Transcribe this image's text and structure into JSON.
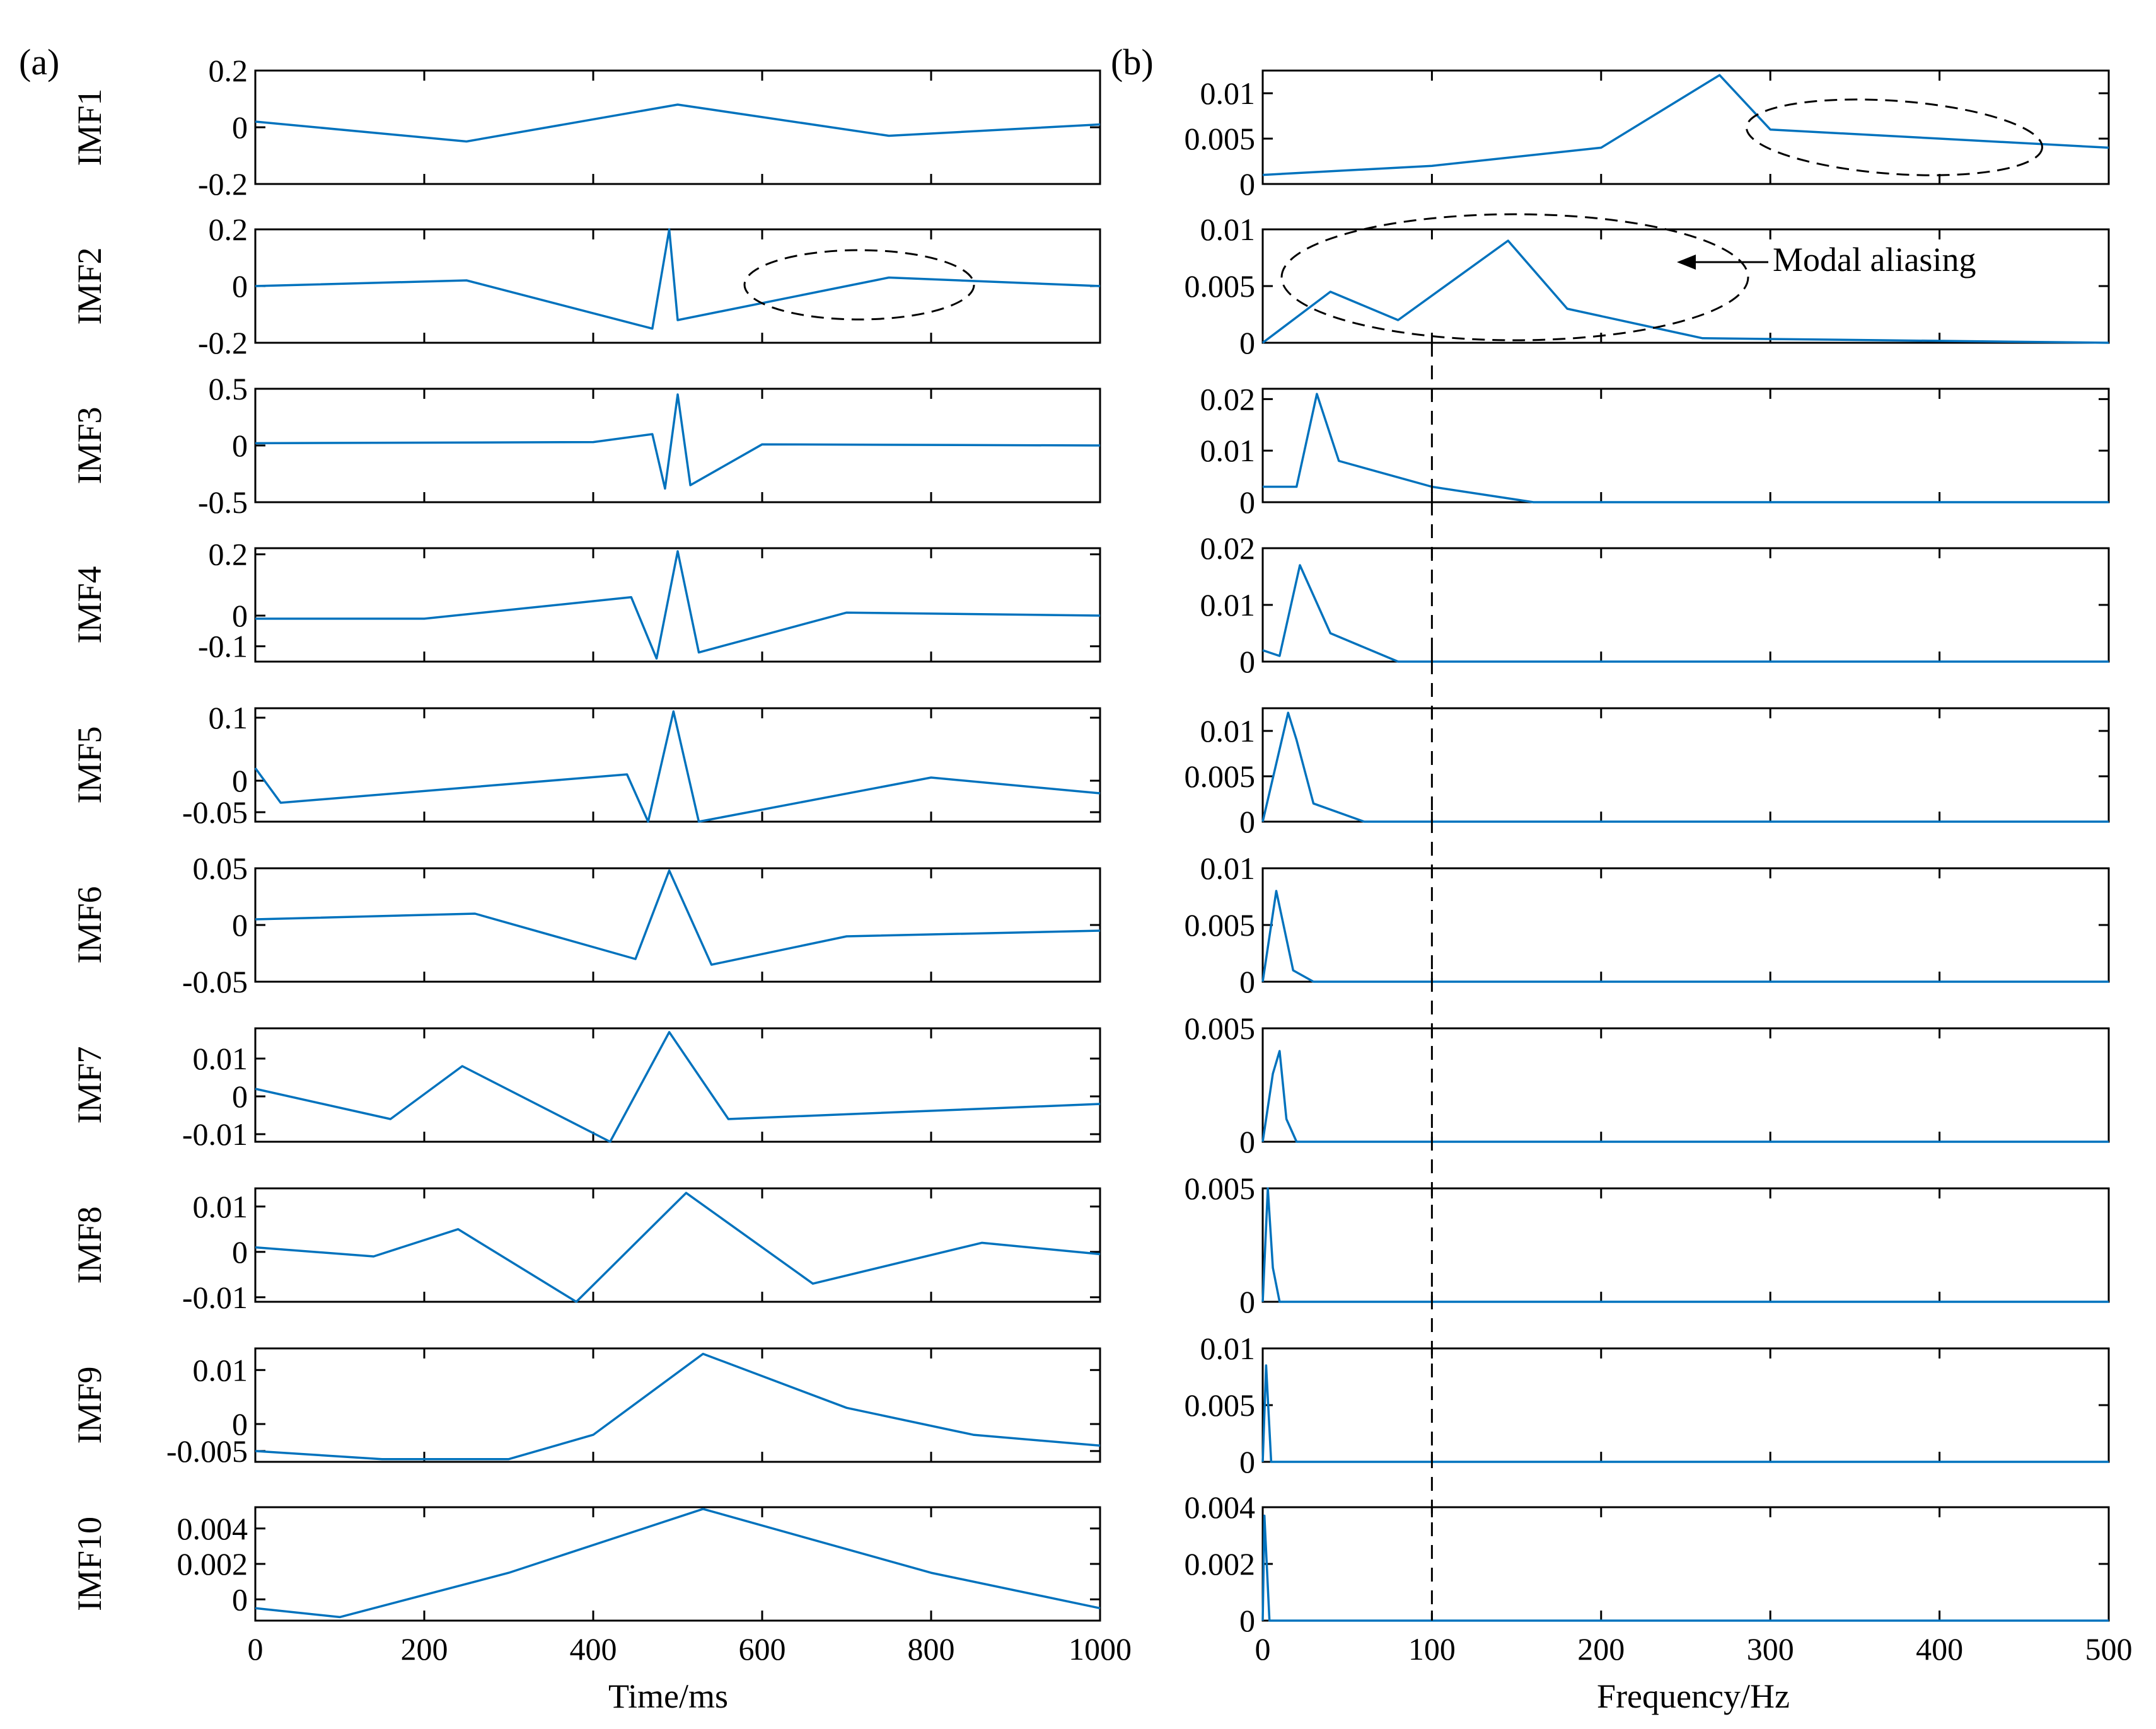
{
  "figure": {
    "panel_labels": [
      "(a)",
      "(b)"
    ],
    "annotation": "Modal aliasing",
    "line_color": "#0072BD"
  },
  "chart_data": [
    {
      "type": "line",
      "panel": "(a)",
      "xlabel": "Time/ms",
      "xlim": [
        0,
        1000
      ],
      "xticks": [
        0,
        200,
        400,
        600,
        800,
        1000
      ],
      "subplots": [
        {
          "ylabel": "IMF1",
          "ylim": [
            -0.2,
            0.2
          ],
          "yticks": [
            -0.2,
            0,
            0.2
          ],
          "ytick_labels": [
            "-0.2",
            "0",
            "0.2"
          ],
          "x": [
            0,
            250,
            500,
            750,
            1000
          ],
          "y": [
            0.02,
            -0.05,
            0.08,
            -0.03,
            0.01
          ]
        },
        {
          "ylabel": "IMF2",
          "ylim": [
            -0.2,
            0.2
          ],
          "yticks": [
            -0.2,
            0,
            0.2
          ],
          "ytick_labels": [
            "-0.2",
            "0",
            "0.2"
          ],
          "x": [
            0,
            250,
            470,
            490,
            500,
            750,
            1000
          ],
          "y": [
            0.0,
            0.02,
            -0.15,
            0.2,
            -0.12,
            0.03,
            0.0
          ]
        },
        {
          "ylabel": "IMF3",
          "ylim": [
            -0.5,
            0.5
          ],
          "yticks": [
            -0.5,
            0,
            0.5
          ],
          "ytick_labels": [
            "-0.5",
            "0",
            "0.5"
          ],
          "x": [
            0,
            400,
            470,
            485,
            500,
            515,
            600,
            1000
          ],
          "y": [
            0.02,
            0.03,
            0.1,
            -0.38,
            0.45,
            -0.35,
            0.01,
            0.0
          ]
        },
        {
          "ylabel": "IMF4",
          "ylim": [
            -0.15,
            0.22
          ],
          "yticks": [
            -0.1,
            0,
            0.2
          ],
          "ytick_labels": [
            "-0.1",
            "0",
            "0.2"
          ],
          "x": [
            0,
            200,
            445,
            475,
            500,
            525,
            700,
            1000
          ],
          "y": [
            -0.01,
            -0.01,
            0.06,
            -0.14,
            0.21,
            -0.12,
            0.01,
            0.0
          ]
        },
        {
          "ylabel": "IMF5",
          "ylim": [
            -0.065,
            0.115
          ],
          "yticks": [
            -0.05,
            0,
            0.1
          ],
          "ytick_labels": [
            "-0.05",
            "0",
            "0.1"
          ],
          "x": [
            0,
            30,
            440,
            465,
            495,
            525,
            800,
            1000
          ],
          "y": [
            0.02,
            -0.035,
            0.01,
            -0.065,
            0.11,
            -0.065,
            0.005,
            -0.02
          ]
        },
        {
          "ylabel": "IMF6",
          "ylim": [
            -0.05,
            0.05
          ],
          "yticks": [
            -0.05,
            0,
            0.05
          ],
          "ytick_labels": [
            "-0.05",
            "0",
            "0.05"
          ],
          "x": [
            0,
            260,
            450,
            490,
            540,
            700,
            1000
          ],
          "y": [
            0.005,
            0.01,
            -0.03,
            0.048,
            -0.035,
            -0.01,
            -0.005
          ]
        },
        {
          "ylabel": "IMF7",
          "ylim": [
            -0.012,
            0.018
          ],
          "yticks": [
            -0.01,
            0,
            0.01
          ],
          "ytick_labels": [
            "-0.01",
            "0",
            "0.01"
          ],
          "x": [
            0,
            160,
            245,
            420,
            490,
            560,
            1000
          ],
          "y": [
            0.002,
            -0.006,
            0.008,
            -0.012,
            0.017,
            -0.006,
            -0.002
          ]
        },
        {
          "ylabel": "IMF8",
          "ylim": [
            -0.011,
            0.014
          ],
          "yticks": [
            -0.01,
            0,
            0.01
          ],
          "ytick_labels": [
            "-0.01",
            "0",
            "0.01"
          ],
          "x": [
            0,
            140,
            240,
            380,
            510,
            660,
            860,
            1000
          ],
          "y": [
            0.001,
            -0.001,
            0.005,
            -0.011,
            0.013,
            -0.007,
            0.002,
            -0.0005
          ]
        },
        {
          "ylabel": "IMF9",
          "ylim": [
            -0.007,
            0.014
          ],
          "yticks": [
            -0.005,
            0,
            0.01
          ],
          "ytick_labels": [
            "-0.005",
            "0",
            "0.01"
          ],
          "x": [
            0,
            150,
            300,
            400,
            530,
            700,
            850,
            1000
          ],
          "y": [
            -0.005,
            -0.0065,
            -0.0065,
            -0.002,
            0.013,
            0.003,
            -0.002,
            -0.004
          ]
        },
        {
          "ylabel": "IMF10",
          "ylim": [
            -0.0012,
            0.0052
          ],
          "yticks": [
            0,
            0.002,
            0.004
          ],
          "ytick_labels": [
            "0",
            "0.002",
            "0.004"
          ],
          "x": [
            0,
            100,
            300,
            530,
            800,
            1000
          ],
          "y": [
            -0.0005,
            -0.001,
            0.0015,
            0.0051,
            0.0015,
            -0.0005
          ]
        }
      ]
    },
    {
      "type": "line",
      "panel": "(b)",
      "xlabel": "Frequency/Hz",
      "xlim": [
        0,
        500
      ],
      "xticks": [
        0,
        100,
        200,
        300,
        400,
        500
      ],
      "marker_x": 100,
      "subplots": [
        {
          "ylim": [
            0,
            0.0125
          ],
          "yticks": [
            0,
            0.005,
            0.01
          ],
          "ytick_labels": [
            "0",
            "0.005",
            "0.01"
          ],
          "x": [
            0,
            100,
            200,
            270,
            300,
            400,
            500
          ],
          "y": [
            0.001,
            0.002,
            0.004,
            0.012,
            0.006,
            0.005,
            0.004
          ]
        },
        {
          "ylim": [
            0,
            0.01
          ],
          "yticks": [
            0,
            0.005,
            0.01
          ],
          "ytick_labels": [
            "0",
            "0.005",
            "0.01"
          ],
          "x": [
            0,
            40,
            80,
            145,
            180,
            260,
            500
          ],
          "y": [
            0.0,
            0.0045,
            0.002,
            0.009,
            0.003,
            0.0004,
            0.0
          ]
        },
        {
          "ylim": [
            0,
            0.022
          ],
          "yticks": [
            0,
            0.01,
            0.02
          ],
          "ytick_labels": [
            "0",
            "0.01",
            "0.02"
          ],
          "x": [
            0,
            20,
            32,
            45,
            100,
            160,
            500
          ],
          "y": [
            0.003,
            0.003,
            0.021,
            0.008,
            0.003,
            0.0,
            0.0
          ]
        },
        {
          "ylim": [
            0,
            0.02
          ],
          "yticks": [
            0,
            0.01,
            0.02
          ],
          "ytick_labels": [
            "0",
            "0.01",
            "0.02"
          ],
          "x": [
            0,
            10,
            22,
            40,
            80,
            500
          ],
          "y": [
            0.002,
            0.001,
            0.017,
            0.005,
            0.0,
            0.0
          ]
        },
        {
          "ylim": [
            0,
            0.0125
          ],
          "yticks": [
            0,
            0.005,
            0.01
          ],
          "ytick_labels": [
            "0",
            "0.005",
            "0.01"
          ],
          "x": [
            0,
            15,
            20,
            30,
            60,
            500
          ],
          "y": [
            0.0,
            0.012,
            0.009,
            0.002,
            0.0,
            0.0
          ]
        },
        {
          "ylim": [
            0,
            0.01
          ],
          "yticks": [
            0,
            0.005,
            0.01
          ],
          "ytick_labels": [
            "0",
            "0.005",
            "0.01"
          ],
          "x": [
            0,
            8,
            13,
            18,
            30,
            500
          ],
          "y": [
            0.0,
            0.008,
            0.0045,
            0.001,
            0.0,
            0.0
          ]
        },
        {
          "ylim": [
            0,
            0.005
          ],
          "yticks": [
            0,
            0.005
          ],
          "ytick_labels": [
            "0",
            "0.005"
          ],
          "x": [
            0,
            6,
            10,
            14,
            20,
            500
          ],
          "y": [
            0.0,
            0.003,
            0.004,
            0.001,
            0.0,
            0.0
          ]
        },
        {
          "ylim": [
            0,
            0.005
          ],
          "yticks": [
            0,
            0.005
          ],
          "ytick_labels": [
            "0",
            "0.005"
          ],
          "x": [
            0,
            3,
            6,
            10,
            500
          ],
          "y": [
            0.0,
            0.005,
            0.0015,
            0.0,
            0.0
          ]
        },
        {
          "ylim": [
            0,
            0.01
          ],
          "yticks": [
            0,
            0.005,
            0.01
          ],
          "ytick_labels": [
            "0",
            "0.005",
            "0.01"
          ],
          "x": [
            0,
            2,
            5,
            500
          ],
          "y": [
            0.0,
            0.0085,
            0.0,
            0.0
          ]
        },
        {
          "ylim": [
            0,
            0.004
          ],
          "yticks": [
            0,
            0.002,
            0.004
          ],
          "ytick_labels": [
            "0",
            "0.002",
            "0.004"
          ],
          "x": [
            0,
            1,
            4,
            500
          ],
          "y": [
            0.0,
            0.0037,
            0.0,
            0.0
          ]
        }
      ]
    }
  ]
}
